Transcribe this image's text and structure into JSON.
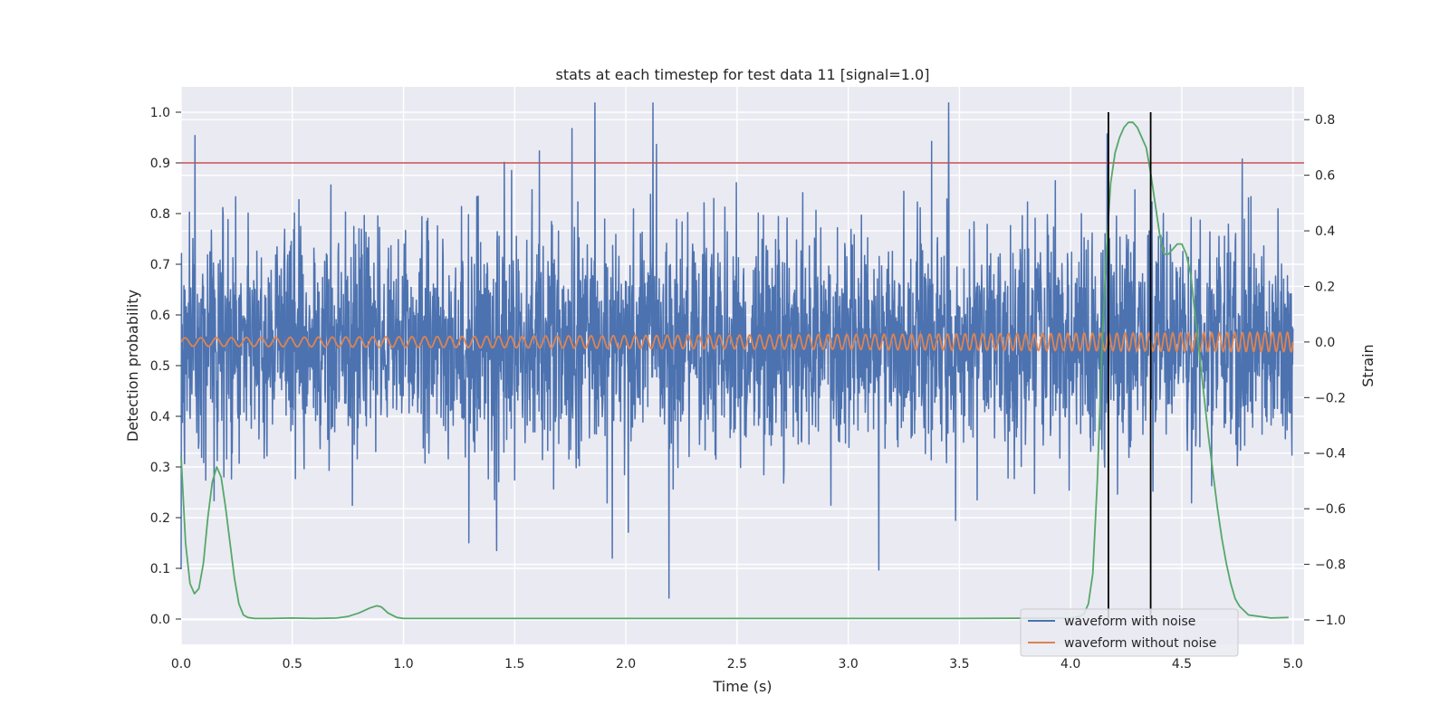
{
  "chart_data": {
    "type": "line",
    "title": "stats at each timestep for test data 11 [signal=1.0]",
    "xlabel": "Time (s)",
    "ylabel": "Detection probability",
    "y2label": "Strain",
    "xlim": [
      0.0,
      5.05
    ],
    "ylim": [
      -0.05,
      1.05
    ],
    "y2lim": [
      -1.088,
      0.918
    ],
    "xticks": [
      0.0,
      0.5,
      1.0,
      1.5,
      2.0,
      2.5,
      3.0,
      3.5,
      4.0,
      4.5,
      5.0
    ],
    "xtick_labels": [
      "0.0",
      "0.5",
      "1.0",
      "1.5",
      "2.0",
      "2.5",
      "3.0",
      "3.5",
      "4.0",
      "4.5",
      "5.0"
    ],
    "yticks": [
      0.0,
      0.1,
      0.2,
      0.3,
      0.4,
      0.5,
      0.6,
      0.7,
      0.8,
      0.9,
      1.0
    ],
    "ytick_labels": [
      "0.0",
      "0.1",
      "0.2",
      "0.3",
      "0.4",
      "0.5",
      "0.6",
      "0.7",
      "0.8",
      "0.9",
      "1.0"
    ],
    "y2ticks": [
      -1.0,
      -0.8,
      -0.6,
      -0.4,
      -0.2,
      0.0,
      0.2,
      0.4,
      0.6,
      0.8
    ],
    "y2tick_labels": [
      "−1.0",
      "−0.8",
      "−0.6",
      "−0.4",
      "−0.2",
      "0.0",
      "0.2",
      "0.4",
      "0.6",
      "0.8"
    ],
    "grid": true,
    "legend_position": "lower-right",
    "series": [
      {
        "name": "waveform with noise",
        "axis": "right",
        "color": "#4c72b0",
        "style": "dense-noise",
        "x_range": [
          0.0,
          5.0
        ],
        "y_range": [
          -1.0,
          0.86
        ],
        "typical_band": [
          -0.4,
          0.4
        ]
      },
      {
        "name": "waveform without noise",
        "axis": "right",
        "color": "#dd8452",
        "style": "chirp",
        "x_range": [
          0.0,
          5.0
        ],
        "amplitude_start": 0.015,
        "amplitude_end": 0.035,
        "cycles_per_second_start": 14,
        "cycles_per_second_end": 30
      },
      {
        "axis": "left",
        "color": "#55a868",
        "style": "probability",
        "x": [
          0.0,
          0.02,
          0.04,
          0.06,
          0.08,
          0.1,
          0.12,
          0.14,
          0.16,
          0.18,
          0.2,
          0.22,
          0.24,
          0.26,
          0.28,
          0.3,
          0.33,
          0.4,
          0.5,
          0.6,
          0.7,
          0.75,
          0.8,
          0.85,
          0.88,
          0.9,
          0.93,
          0.97,
          1.0,
          1.5,
          2.0,
          2.5,
          3.0,
          3.5,
          4.0,
          4.04,
          4.06,
          4.08,
          4.1,
          4.12,
          4.14,
          4.16,
          4.18,
          4.2,
          4.22,
          4.24,
          4.26,
          4.28,
          4.3,
          4.32,
          4.34,
          4.36,
          4.38,
          4.4,
          4.42,
          4.44,
          4.46,
          4.48,
          4.5,
          4.52,
          4.54,
          4.56,
          4.58,
          4.6,
          4.62,
          4.64,
          4.66,
          4.68,
          4.7,
          4.72,
          4.74,
          4.76,
          4.8,
          4.9,
          4.98
        ],
        "y": [
          0.32,
          0.15,
          0.07,
          0.05,
          0.06,
          0.11,
          0.2,
          0.27,
          0.3,
          0.28,
          0.22,
          0.15,
          0.08,
          0.03,
          0.008,
          0.003,
          0.001,
          0.001,
          0.002,
          0.001,
          0.002,
          0.005,
          0.012,
          0.022,
          0.026,
          0.024,
          0.012,
          0.003,
          0.001,
          0.001,
          0.001,
          0.001,
          0.001,
          0.001,
          0.002,
          0.005,
          0.01,
          0.03,
          0.09,
          0.27,
          0.52,
          0.72,
          0.86,
          0.92,
          0.95,
          0.97,
          0.98,
          0.98,
          0.97,
          0.95,
          0.93,
          0.88,
          0.82,
          0.76,
          0.72,
          0.72,
          0.73,
          0.74,
          0.74,
          0.72,
          0.68,
          0.6,
          0.52,
          0.44,
          0.36,
          0.29,
          0.22,
          0.16,
          0.11,
          0.07,
          0.04,
          0.025,
          0.008,
          0.002,
          0.003
        ]
      },
      {
        "axis": "left",
        "color": "#c44e52",
        "style": "threshold",
        "y": 0.9
      }
    ],
    "vlines": [
      {
        "x": 4.17,
        "ymin": 0.0,
        "ymax": 1.0,
        "color": "#000000"
      },
      {
        "x": 4.36,
        "ymin": 0.0,
        "ymax": 1.0,
        "color": "#000000"
      }
    ]
  }
}
